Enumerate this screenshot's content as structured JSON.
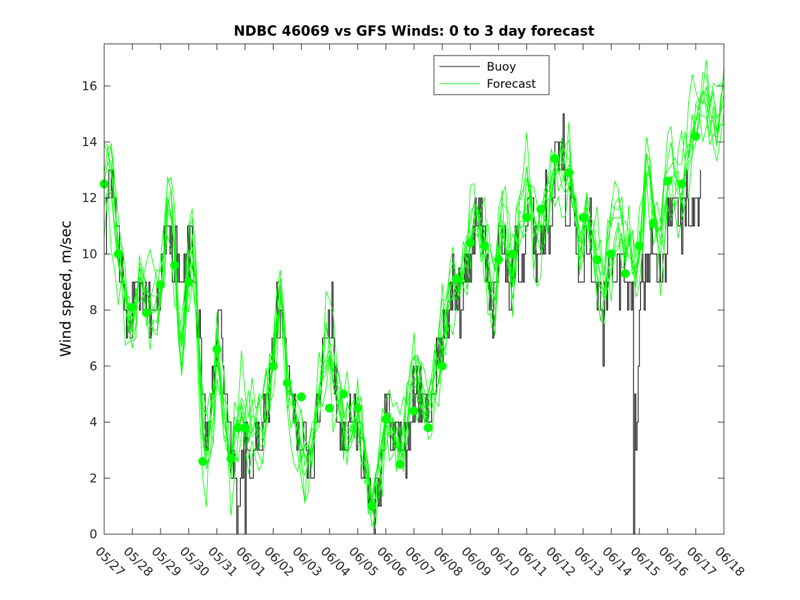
{
  "chart_data": {
    "type": "line",
    "title": "NDBC 46069 vs GFS Winds: 0 to 3 day forecast",
    "xlabel": "",
    "ylabel": "Wind speed, m/sec",
    "x_tick_labels": [
      "05/27",
      "05/28",
      "05/29",
      "05/30",
      "05/31",
      "06/01",
      "06/02",
      "06/03",
      "06/04",
      "06/05",
      "06/06",
      "06/07",
      "06/08",
      "06/09",
      "06/10",
      "06/11",
      "06/12",
      "06/13",
      "06/14",
      "06/15",
      "06/16",
      "06/17",
      "06/18"
    ],
    "y_ticks": [
      0,
      2,
      4,
      6,
      8,
      10,
      12,
      14,
      16
    ],
    "ylim": [
      0,
      17.5
    ],
    "xlim_days": [
      0,
      22
    ],
    "grid": false,
    "legend_position": "top-right",
    "legend": [
      "Buoy",
      "Forecast"
    ],
    "colors": {
      "buoy": "#000000",
      "forecast": "#00ff00",
      "markers": "#00ff00"
    },
    "buoy_anchors": [
      [
        0.0,
        9
      ],
      [
        0.1,
        12.5
      ],
      [
        0.25,
        12.8
      ],
      [
        0.4,
        11.5
      ],
      [
        0.5,
        10
      ],
      [
        0.65,
        9.5
      ],
      [
        0.8,
        8
      ],
      [
        0.9,
        7
      ],
      [
        1.0,
        7.5
      ],
      [
        1.1,
        8.5
      ],
      [
        1.2,
        8.2
      ],
      [
        1.35,
        8.5
      ],
      [
        1.5,
        8.3
      ],
      [
        1.6,
        7.8
      ],
      [
        1.7,
        8
      ],
      [
        1.8,
        7.8
      ],
      [
        1.9,
        8.5
      ],
      [
        2.0,
        9.5
      ],
      [
        2.15,
        10
      ],
      [
        2.3,
        10.5
      ],
      [
        2.5,
        10
      ],
      [
        2.6,
        9.5
      ],
      [
        2.75,
        8.5
      ],
      [
        2.9,
        9.5
      ],
      [
        3.0,
        10.3
      ],
      [
        3.1,
        10.5
      ],
      [
        3.2,
        9.5
      ],
      [
        3.3,
        8
      ],
      [
        3.4,
        6
      ],
      [
        3.5,
        4
      ],
      [
        3.6,
        3.2
      ],
      [
        3.7,
        3.8
      ],
      [
        3.8,
        4.5
      ],
      [
        3.9,
        6.2
      ],
      [
        4.0,
        7
      ],
      [
        4.1,
        7.5
      ],
      [
        4.2,
        7
      ],
      [
        4.3,
        5
      ],
      [
        4.4,
        3.5
      ],
      [
        4.5,
        2.5
      ],
      [
        4.6,
        3
      ],
      [
        4.7,
        2
      ],
      [
        4.8,
        1.8
      ],
      [
        4.9,
        2.2
      ],
      [
        5.0,
        3.2
      ],
      [
        5.1,
        2.8
      ],
      [
        5.2,
        2.5
      ],
      [
        5.3,
        3.2
      ],
      [
        5.4,
        3
      ],
      [
        5.5,
        3.5
      ],
      [
        5.6,
        3.2
      ],
      [
        5.7,
        4
      ],
      [
        5.8,
        5
      ],
      [
        5.9,
        6
      ],
      [
        6.0,
        7
      ],
      [
        6.1,
        7.5
      ],
      [
        6.2,
        8
      ],
      [
        6.3,
        7.5
      ],
      [
        6.4,
        6.5
      ],
      [
        6.5,
        5.5
      ],
      [
        6.6,
        5
      ],
      [
        6.7,
        4.5
      ],
      [
        6.8,
        4
      ],
      [
        6.9,
        3.5
      ],
      [
        7.0,
        3
      ],
      [
        7.1,
        2.8
      ],
      [
        7.2,
        2.5
      ],
      [
        7.3,
        2.2
      ],
      [
        7.4,
        3
      ],
      [
        7.5,
        4
      ],
      [
        7.6,
        5
      ],
      [
        7.7,
        6
      ],
      [
        7.8,
        6.8
      ],
      [
        7.9,
        7.5
      ],
      [
        8.0,
        7.2
      ],
      [
        8.1,
        6.5
      ],
      [
        8.2,
        5.5
      ],
      [
        8.3,
        4.5
      ],
      [
        8.4,
        4
      ],
      [
        8.5,
        3.8
      ],
      [
        8.6,
        3.5
      ],
      [
        8.7,
        3.5
      ],
      [
        8.8,
        3.8
      ],
      [
        8.9,
        4.2
      ],
      [
        9.0,
        4
      ],
      [
        9.1,
        3.5
      ],
      [
        9.2,
        2.8
      ],
      [
        9.3,
        2.2
      ],
      [
        9.4,
        1.8
      ],
      [
        9.5,
        1.5
      ],
      [
        9.6,
        1.5
      ],
      [
        9.7,
        2
      ],
      [
        9.8,
        2.5
      ],
      [
        9.9,
        3.5
      ],
      [
        10.0,
        4.2
      ],
      [
        10.1,
        4.5
      ],
      [
        10.2,
        4
      ],
      [
        10.3,
        3.5
      ],
      [
        10.4,
        3.2
      ],
      [
        10.5,
        3.8
      ],
      [
        10.6,
        3
      ],
      [
        10.7,
        2.5
      ],
      [
        10.8,
        3.5
      ],
      [
        10.9,
        4.5
      ],
      [
        11.0,
        5
      ],
      [
        11.1,
        5
      ],
      [
        11.2,
        4.5
      ],
      [
        11.3,
        4.2
      ],
      [
        11.4,
        4.5
      ],
      [
        11.5,
        4.8
      ],
      [
        11.6,
        4.5
      ],
      [
        11.7,
        5
      ],
      [
        11.8,
        5.8
      ],
      [
        11.9,
        6.5
      ],
      [
        12.0,
        7
      ],
      [
        12.1,
        7.5
      ],
      [
        12.2,
        8
      ],
      [
        12.3,
        8.5
      ],
      [
        12.4,
        9
      ],
      [
        12.5,
        8.5
      ],
      [
        12.6,
        8
      ],
      [
        12.7,
        7.8
      ],
      [
        12.8,
        8.5
      ],
      [
        12.9,
        9.5
      ],
      [
        13.0,
        10
      ],
      [
        13.1,
        11
      ],
      [
        13.2,
        11.5
      ],
      [
        13.3,
        11.2
      ],
      [
        13.4,
        11
      ],
      [
        13.5,
        10.2
      ],
      [
        13.6,
        9.5
      ],
      [
        13.7,
        8.5
      ],
      [
        13.8,
        8.2
      ],
      [
        13.9,
        9
      ],
      [
        14.0,
        10
      ],
      [
        14.1,
        10.5
      ],
      [
        14.2,
        10
      ],
      [
        14.3,
        9
      ],
      [
        14.4,
        8.5
      ],
      [
        14.5,
        9.5
      ],
      [
        14.6,
        10.5
      ],
      [
        14.7,
        10.2
      ],
      [
        14.8,
        9.5
      ],
      [
        14.9,
        10.5
      ],
      [
        15.0,
        11.5
      ],
      [
        15.1,
        12
      ],
      [
        15.2,
        11
      ],
      [
        15.3,
        10.5
      ],
      [
        15.4,
        10
      ],
      [
        15.5,
        10.5
      ],
      [
        15.6,
        11
      ],
      [
        15.7,
        12
      ],
      [
        15.8,
        11
      ],
      [
        15.9,
        12.5
      ],
      [
        16.0,
        13
      ],
      [
        16.1,
        13.5
      ],
      [
        16.2,
        13.5
      ],
      [
        16.3,
        12
      ],
      [
        16.4,
        11.5
      ],
      [
        16.5,
        11.8
      ],
      [
        16.6,
        12
      ],
      [
        16.7,
        11
      ],
      [
        16.8,
        10
      ],
      [
        16.9,
        9.5
      ],
      [
        17.0,
        10.5
      ],
      [
        17.1,
        11.2
      ],
      [
        17.2,
        11
      ],
      [
        17.3,
        10
      ],
      [
        17.4,
        9.5
      ],
      [
        17.5,
        9.2
      ],
      [
        17.6,
        8.5
      ],
      [
        17.7,
        8
      ],
      [
        17.8,
        8.5
      ],
      [
        17.9,
        9.5
      ],
      [
        18.0,
        9.8
      ],
      [
        18.1,
        9.5
      ],
      [
        18.2,
        9.8
      ],
      [
        18.3,
        9
      ],
      [
        18.4,
        9.5
      ],
      [
        18.5,
        9
      ],
      [
        18.6,
        8.5
      ],
      [
        18.7,
        8.8
      ],
      [
        18.8,
        8
      ],
      [
        18.85,
        2
      ],
      [
        18.9,
        4
      ],
      [
        18.95,
        7
      ],
      [
        19.0,
        8.5
      ],
      [
        19.1,
        9
      ],
      [
        19.2,
        9.5
      ],
      [
        19.3,
        10
      ],
      [
        19.4,
        10.5
      ],
      [
        19.5,
        10
      ],
      [
        19.6,
        10.5
      ],
      [
        19.7,
        9.5
      ],
      [
        19.8,
        9
      ],
      [
        19.9,
        9.5
      ],
      [
        20.0,
        11
      ],
      [
        20.1,
        11.5
      ],
      [
        20.2,
        11.5
      ],
      [
        20.3,
        11
      ],
      [
        20.4,
        11.5
      ],
      [
        20.5,
        11.2
      ],
      [
        20.6,
        11.5
      ],
      [
        20.7,
        11.5
      ],
      [
        20.8,
        11.2
      ],
      [
        20.9,
        11.8
      ],
      [
        21.0,
        11
      ],
      [
        21.1,
        11.5
      ],
      [
        21.2,
        13
      ]
    ],
    "buoy_spikes": [
      [
        4.7,
        0
      ],
      [
        5.0,
        0
      ],
      [
        8.1,
        9
      ],
      [
        9.6,
        0
      ],
      [
        12.6,
        9.5
      ],
      [
        16.3,
        15
      ],
      [
        17.7,
        6
      ],
      [
        18.8,
        0
      ]
    ],
    "forecast_anchors": [
      [
        0,
        12.5
      ],
      [
        0.3,
        12.2
      ],
      [
        0.5,
        10
      ],
      [
        0.75,
        8.5
      ],
      [
        1.0,
        7.2
      ],
      [
        1.1,
        8
      ],
      [
        1.25,
        9
      ],
      [
        1.5,
        8.5
      ],
      [
        1.75,
        8
      ],
      [
        2.0,
        8.8
      ],
      [
        2.1,
        10
      ],
      [
        2.25,
        12
      ],
      [
        2.4,
        11.5
      ],
      [
        2.5,
        10
      ],
      [
        2.6,
        8
      ],
      [
        2.75,
        6.5
      ],
      [
        2.9,
        8
      ],
      [
        3.0,
        9.5
      ],
      [
        3.1,
        10.5
      ],
      [
        3.25,
        8.5
      ],
      [
        3.4,
        5.5
      ],
      [
        3.5,
        3.5
      ],
      [
        3.65,
        2.5
      ],
      [
        3.75,
        3.5
      ],
      [
        3.9,
        5
      ],
      [
        4.0,
        6.5
      ],
      [
        4.1,
        5.5
      ],
      [
        4.25,
        4.5
      ],
      [
        4.4,
        3
      ],
      [
        4.5,
        2.5
      ],
      [
        4.6,
        3.2
      ],
      [
        4.75,
        3.8
      ],
      [
        4.9,
        4.5
      ],
      [
        5.0,
        3.8
      ],
      [
        5.1,
        3.2
      ],
      [
        5.25,
        3.8
      ],
      [
        5.4,
        3.5
      ],
      [
        5.6,
        3
      ],
      [
        5.75,
        4.5
      ],
      [
        6.0,
        6.2
      ],
      [
        6.1,
        7.5
      ],
      [
        6.25,
        8.8
      ],
      [
        6.4,
        7.5
      ],
      [
        6.5,
        5.5
      ],
      [
        6.6,
        5
      ],
      [
        6.75,
        4.5
      ],
      [
        6.9,
        3.5
      ],
      [
        7.0,
        3
      ],
      [
        7.1,
        2.5
      ],
      [
        7.25,
        2.5
      ],
      [
        7.4,
        3
      ],
      [
        7.5,
        3.8
      ],
      [
        7.6,
        4.5
      ],
      [
        7.75,
        5.5
      ],
      [
        7.9,
        6.5
      ],
      [
        8.0,
        6.5
      ],
      [
        8.1,
        5.8
      ],
      [
        8.25,
        5
      ],
      [
        8.4,
        4.5
      ],
      [
        8.5,
        4
      ],
      [
        8.6,
        3.5
      ],
      [
        8.75,
        3.5
      ],
      [
        8.9,
        4
      ],
      [
        9.0,
        4.2
      ],
      [
        9.1,
        3.8
      ],
      [
        9.25,
        2.8
      ],
      [
        9.4,
        1.8
      ],
      [
        9.5,
        1.2
      ],
      [
        9.6,
        1.5
      ],
      [
        9.75,
        2.5
      ],
      [
        9.9,
        3.5
      ],
      [
        10.0,
        4
      ],
      [
        10.1,
        4.5
      ],
      [
        10.25,
        4
      ],
      [
        10.4,
        3.5
      ],
      [
        10.5,
        2.8
      ],
      [
        10.6,
        3
      ],
      [
        10.75,
        4
      ],
      [
        10.9,
        4.8
      ],
      [
        11.0,
        5
      ],
      [
        11.25,
        4.5
      ],
      [
        11.4,
        4
      ],
      [
        11.5,
        4.3
      ],
      [
        11.6,
        4.8
      ],
      [
        11.75,
        5.5
      ],
      [
        11.9,
        6
      ],
      [
        12.0,
        7
      ],
      [
        12.1,
        7.5
      ],
      [
        12.25,
        8.8
      ],
      [
        12.4,
        9
      ],
      [
        12.5,
        8.8
      ],
      [
        12.6,
        8.5
      ],
      [
        12.75,
        9.2
      ],
      [
        12.9,
        10
      ],
      [
        13.0,
        11
      ],
      [
        13.1,
        11.5
      ],
      [
        13.25,
        11.2
      ],
      [
        13.4,
        10.5
      ],
      [
        13.5,
        10.5
      ],
      [
        13.6,
        10
      ],
      [
        13.75,
        8.5
      ],
      [
        13.9,
        8.5
      ],
      [
        14.0,
        10
      ],
      [
        14.1,
        11
      ],
      [
        14.25,
        10.5
      ],
      [
        14.4,
        9.5
      ],
      [
        14.5,
        9
      ],
      [
        14.6,
        10
      ],
      [
        14.75,
        11
      ],
      [
        14.9,
        11
      ],
      [
        15.0,
        12
      ],
      [
        15.1,
        12.2
      ],
      [
        15.25,
        11
      ],
      [
        15.4,
        10.5
      ],
      [
        15.5,
        11
      ],
      [
        15.6,
        11.5
      ],
      [
        15.75,
        12
      ],
      [
        15.9,
        12.5
      ],
      [
        16.0,
        13
      ],
      [
        16.1,
        13.3
      ],
      [
        16.25,
        13
      ],
      [
        16.4,
        12.5
      ],
      [
        16.5,
        12.8
      ],
      [
        16.6,
        12
      ],
      [
        16.75,
        11
      ],
      [
        16.9,
        10
      ],
      [
        17.0,
        10.5
      ],
      [
        17.1,
        11.5
      ],
      [
        17.25,
        11
      ],
      [
        17.4,
        10
      ],
      [
        17.5,
        9.5
      ],
      [
        17.6,
        9
      ],
      [
        17.75,
        8.5
      ],
      [
        17.9,
        9.5
      ],
      [
        18.0,
        10
      ],
      [
        18.1,
        10.5
      ],
      [
        18.25,
        11
      ],
      [
        18.4,
        10.5
      ],
      [
        18.5,
        10
      ],
      [
        18.6,
        10.5
      ],
      [
        18.75,
        9.5
      ],
      [
        18.9,
        9
      ],
      [
        19.0,
        10
      ],
      [
        19.1,
        11.5
      ],
      [
        19.25,
        13
      ],
      [
        19.4,
        12.5
      ],
      [
        19.5,
        11.5
      ],
      [
        19.6,
        11
      ],
      [
        19.75,
        10.5
      ],
      [
        19.9,
        11.5
      ],
      [
        20.0,
        12.5
      ],
      [
        20.1,
        13
      ],
      [
        20.25,
        12.5
      ],
      [
        20.4,
        12
      ],
      [
        20.5,
        12.5
      ],
      [
        20.6,
        13
      ],
      [
        20.75,
        13.5
      ],
      [
        20.9,
        14
      ],
      [
        21.0,
        14.5
      ],
      [
        21.1,
        15
      ],
      [
        21.25,
        15.5
      ],
      [
        21.4,
        15
      ],
      [
        21.5,
        14.5
      ],
      [
        21.6,
        14.5
      ],
      [
        21.75,
        14
      ],
      [
        21.9,
        15
      ],
      [
        22.0,
        15.8
      ]
    ],
    "forecast_markers": [
      [
        0.0,
        12.5
      ],
      [
        0.5,
        10.0
      ],
      [
        1.0,
        8.1
      ],
      [
        1.5,
        7.9
      ],
      [
        2.0,
        8.9
      ],
      [
        2.5,
        9.6
      ],
      [
        3.0,
        9.0
      ],
      [
        3.5,
        2.6
      ],
      [
        4.0,
        6.6
      ],
      [
        4.5,
        2.7
      ],
      [
        4.75,
        3.8
      ],
      [
        5.0,
        3.8
      ],
      [
        6.0,
        6.0
      ],
      [
        6.5,
        5.4
      ],
      [
        7.0,
        4.9
      ],
      [
        8.0,
        4.5
      ],
      [
        8.5,
        5.0
      ],
      [
        9.0,
        4.5
      ],
      [
        9.5,
        1.0
      ],
      [
        10.0,
        4.1
      ],
      [
        10.5,
        2.5
      ],
      [
        11.0,
        4.4
      ],
      [
        11.5,
        3.8
      ],
      [
        12.0,
        6.0
      ],
      [
        12.5,
        9.1
      ],
      [
        13.0,
        10.4
      ],
      [
        13.5,
        10.3
      ],
      [
        14.0,
        9.8
      ],
      [
        14.5,
        10.0
      ],
      [
        15.0,
        11.3
      ],
      [
        15.5,
        11.6
      ],
      [
        16.0,
        13.4
      ],
      [
        16.5,
        12.9
      ],
      [
        17.0,
        11.3
      ],
      [
        17.5,
        9.8
      ],
      [
        18.0,
        10.0
      ],
      [
        18.5,
        9.3
      ],
      [
        19.0,
        10.3
      ],
      [
        19.5,
        11.1
      ],
      [
        20.0,
        12.6
      ],
      [
        20.5,
        12.5
      ],
      [
        21.0,
        14.2
      ]
    ]
  }
}
